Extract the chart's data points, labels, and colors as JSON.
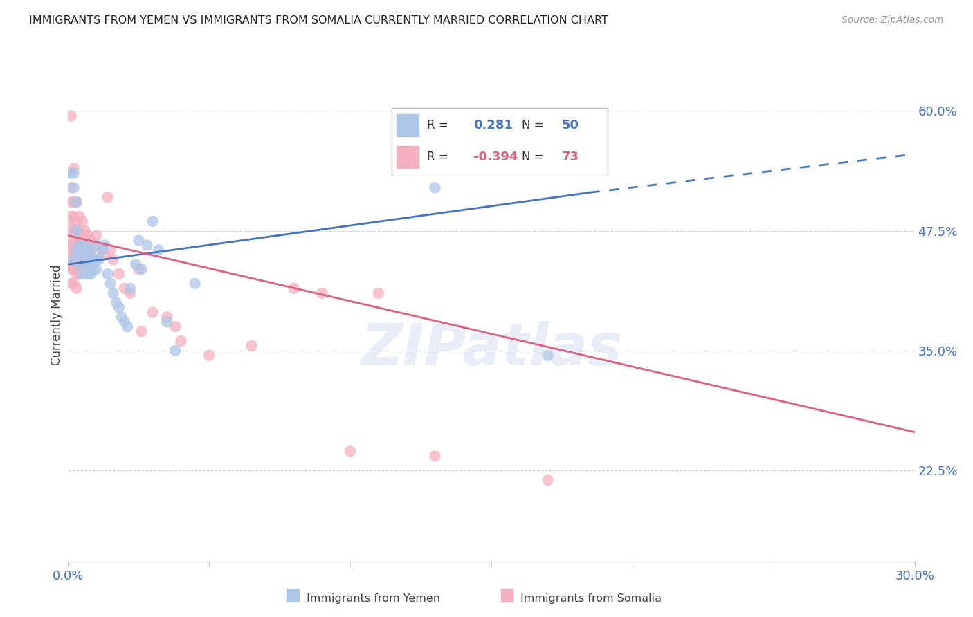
{
  "title": "IMMIGRANTS FROM YEMEN VS IMMIGRANTS FROM SOMALIA CURRENTLY MARRIED CORRELATION CHART",
  "source": "Source: ZipAtlas.com",
  "ylabel": "Currently Married",
  "yticks": [
    0.225,
    0.35,
    0.475,
    0.6
  ],
  "ytick_labels": [
    "22.5%",
    "35.0%",
    "47.5%",
    "60.0%"
  ],
  "xmin": 0.0,
  "xmax": 0.3,
  "ymin": 0.13,
  "ymax": 0.645,
  "watermark": "ZIPatlas",
  "blue_color": "#aec6e8",
  "pink_color": "#f4afc0",
  "blue_line_color": "#4472c4",
  "pink_line_color": "#e06080",
  "axis_color": "#4472c4",
  "grid_color": "#d0d0d0",
  "yemen_scatter": [
    [
      0.001,
      0.445
    ],
    [
      0.001,
      0.535
    ],
    [
      0.002,
      0.535
    ],
    [
      0.002,
      0.52
    ],
    [
      0.003,
      0.505
    ],
    [
      0.003,
      0.475
    ],
    [
      0.003,
      0.455
    ],
    [
      0.004,
      0.46
    ],
    [
      0.004,
      0.45
    ],
    [
      0.004,
      0.44
    ],
    [
      0.005,
      0.455
    ],
    [
      0.005,
      0.445
    ],
    [
      0.005,
      0.43
    ],
    [
      0.006,
      0.46
    ],
    [
      0.006,
      0.45
    ],
    [
      0.006,
      0.44
    ],
    [
      0.007,
      0.455
    ],
    [
      0.007,
      0.445
    ],
    [
      0.007,
      0.43
    ],
    [
      0.008,
      0.45
    ],
    [
      0.008,
      0.44
    ],
    [
      0.008,
      0.43
    ],
    [
      0.009,
      0.445
    ],
    [
      0.009,
      0.435
    ],
    [
      0.01,
      0.46
    ],
    [
      0.01,
      0.445
    ],
    [
      0.01,
      0.435
    ],
    [
      0.011,
      0.445
    ],
    [
      0.012,
      0.455
    ],
    [
      0.013,
      0.46
    ],
    [
      0.014,
      0.43
    ],
    [
      0.015,
      0.42
    ],
    [
      0.016,
      0.41
    ],
    [
      0.017,
      0.4
    ],
    [
      0.018,
      0.395
    ],
    [
      0.019,
      0.385
    ],
    [
      0.02,
      0.38
    ],
    [
      0.021,
      0.375
    ],
    [
      0.022,
      0.415
    ],
    [
      0.024,
      0.44
    ],
    [
      0.025,
      0.465
    ],
    [
      0.026,
      0.435
    ],
    [
      0.028,
      0.46
    ],
    [
      0.03,
      0.485
    ],
    [
      0.032,
      0.455
    ],
    [
      0.035,
      0.38
    ],
    [
      0.038,
      0.35
    ],
    [
      0.045,
      0.42
    ],
    [
      0.13,
      0.52
    ],
    [
      0.17,
      0.345
    ]
  ],
  "somalia_scatter": [
    [
      0.001,
      0.595
    ],
    [
      0.001,
      0.52
    ],
    [
      0.001,
      0.505
    ],
    [
      0.001,
      0.49
    ],
    [
      0.001,
      0.48
    ],
    [
      0.001,
      0.47
    ],
    [
      0.001,
      0.46
    ],
    [
      0.001,
      0.455
    ],
    [
      0.001,
      0.445
    ],
    [
      0.001,
      0.435
    ],
    [
      0.001,
      0.42
    ],
    [
      0.002,
      0.54
    ],
    [
      0.002,
      0.505
    ],
    [
      0.002,
      0.49
    ],
    [
      0.002,
      0.475
    ],
    [
      0.002,
      0.46
    ],
    [
      0.002,
      0.455
    ],
    [
      0.002,
      0.445
    ],
    [
      0.002,
      0.435
    ],
    [
      0.002,
      0.42
    ],
    [
      0.003,
      0.505
    ],
    [
      0.003,
      0.485
    ],
    [
      0.003,
      0.47
    ],
    [
      0.003,
      0.46
    ],
    [
      0.003,
      0.45
    ],
    [
      0.003,
      0.44
    ],
    [
      0.003,
      0.43
    ],
    [
      0.003,
      0.415
    ],
    [
      0.004,
      0.49
    ],
    [
      0.004,
      0.475
    ],
    [
      0.004,
      0.465
    ],
    [
      0.004,
      0.455
    ],
    [
      0.004,
      0.44
    ],
    [
      0.004,
      0.43
    ],
    [
      0.005,
      0.485
    ],
    [
      0.005,
      0.47
    ],
    [
      0.005,
      0.46
    ],
    [
      0.005,
      0.45
    ],
    [
      0.005,
      0.44
    ],
    [
      0.006,
      0.475
    ],
    [
      0.006,
      0.46
    ],
    [
      0.006,
      0.45
    ],
    [
      0.007,
      0.47
    ],
    [
      0.007,
      0.455
    ],
    [
      0.007,
      0.44
    ],
    [
      0.008,
      0.465
    ],
    [
      0.008,
      0.45
    ],
    [
      0.009,
      0.46
    ],
    [
      0.01,
      0.47
    ],
    [
      0.012,
      0.455
    ],
    [
      0.013,
      0.45
    ],
    [
      0.014,
      0.51
    ],
    [
      0.015,
      0.455
    ],
    [
      0.016,
      0.445
    ],
    [
      0.018,
      0.43
    ],
    [
      0.02,
      0.415
    ],
    [
      0.022,
      0.41
    ],
    [
      0.025,
      0.435
    ],
    [
      0.026,
      0.37
    ],
    [
      0.03,
      0.39
    ],
    [
      0.035,
      0.385
    ],
    [
      0.038,
      0.375
    ],
    [
      0.04,
      0.36
    ],
    [
      0.05,
      0.345
    ],
    [
      0.065,
      0.355
    ],
    [
      0.08,
      0.415
    ],
    [
      0.09,
      0.41
    ],
    [
      0.1,
      0.245
    ],
    [
      0.11,
      0.41
    ],
    [
      0.13,
      0.24
    ],
    [
      0.17,
      0.215
    ]
  ],
  "blue_line": {
    "x0": 0.0,
    "y0": 0.44,
    "x1": 0.185,
    "y1": 0.515,
    "x1_dash": 0.3,
    "y1_dash": 0.555
  },
  "pink_line": {
    "x0": 0.0,
    "y0": 0.47,
    "x1": 0.3,
    "y1": 0.265
  }
}
